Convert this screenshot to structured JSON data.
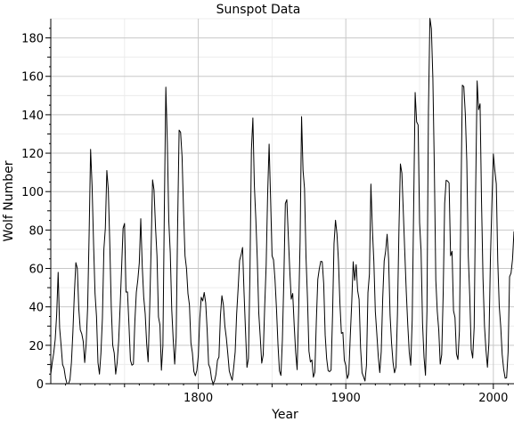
{
  "chart_data": {
    "type": "line",
    "title": "Sunspot Data",
    "xlabel": "Year",
    "ylabel": "Wolf Number",
    "xlim": [
      1700,
      2014
    ],
    "ylim": [
      0,
      190
    ],
    "x_ticks": [
      1800,
      1900,
      2000
    ],
    "x_tick_labels": [
      "1800",
      "1900",
      "2000"
    ],
    "y_ticks": [
      0,
      20,
      40,
      60,
      80,
      100,
      120,
      140,
      160,
      180
    ],
    "y_tick_labels": [
      "0",
      "20",
      "40",
      "60",
      "80",
      "100",
      "120",
      "140",
      "160",
      "180"
    ],
    "grid": true,
    "series": [
      {
        "x": [
          1700,
          1701,
          1702,
          1703,
          1704,
          1705,
          1706,
          1707,
          1708,
          1709,
          1710,
          1711,
          1712,
          1713,
          1714,
          1715,
          1716,
          1717,
          1718,
          1719,
          1720,
          1721,
          1722,
          1723,
          1724,
          1725,
          1726,
          1727,
          1728,
          1729,
          1730,
          1731,
          1732,
          1733,
          1734,
          1735,
          1736,
          1737,
          1738,
          1739,
          1740,
          1741,
          1742,
          1743,
          1744,
          1745,
          1746,
          1747,
          1748,
          1749,
          1750,
          1751,
          1752,
          1753,
          1754,
          1755,
          1756,
          1757,
          1758,
          1759,
          1760,
          1761,
          1762,
          1763,
          1764,
          1765,
          1766,
          1767,
          1768,
          1769,
          1770,
          1771,
          1772,
          1773,
          1774,
          1775,
          1776,
          1777,
          1778,
          1779,
          1780,
          1781,
          1782,
          1783,
          1784,
          1785,
          1786,
          1787,
          1788,
          1789,
          1790,
          1791,
          1792,
          1793,
          1794,
          1795,
          1796,
          1797,
          1798,
          1799,
          1800,
          1801,
          1802,
          1803,
          1804,
          1805,
          1806,
          1807,
          1808,
          1809,
          1810,
          1811,
          1812,
          1813,
          1814,
          1815,
          1816,
          1817,
          1818,
          1819,
          1820,
          1821,
          1822,
          1823,
          1824,
          1825,
          1826,
          1827,
          1828,
          1829,
          1830,
          1831,
          1832,
          1833,
          1834,
          1835,
          1836,
          1837,
          1838,
          1839,
          1840,
          1841,
          1842,
          1843,
          1844,
          1845,
          1846,
          1847,
          1848,
          1849,
          1850,
          1851,
          1852,
          1853,
          1854,
          1855,
          1856,
          1857,
          1858,
          1859,
          1860,
          1861,
          1862,
          1863,
          1864,
          1865,
          1866,
          1867,
          1868,
          1869,
          1870,
          1871,
          1872,
          1873,
          1874,
          1875,
          1876,
          1877,
          1878,
          1879,
          1880,
          1881,
          1882,
          1883,
          1884,
          1885,
          1886,
          1887,
          1888,
          1889,
          1890,
          1891,
          1892,
          1893,
          1894,
          1895,
          1896,
          1897,
          1898,
          1899,
          1900,
          1901,
          1902,
          1903,
          1904,
          1905,
          1906,
          1907,
          1908,
          1909,
          1910,
          1911,
          1912,
          1913,
          1914,
          1915,
          1916,
          1917,
          1918,
          1919,
          1920,
          1921,
          1922,
          1923,
          1924,
          1925,
          1926,
          1927,
          1928,
          1929,
          1930,
          1931,
          1932,
          1933,
          1934,
          1935,
          1936,
          1937,
          1938,
          1939,
          1940,
          1941,
          1942,
          1943,
          1944,
          1945,
          1946,
          1947,
          1948,
          1949,
          1950,
          1951,
          1952,
          1953,
          1954,
          1955,
          1956,
          1957,
          1958,
          1959,
          1960,
          1961,
          1962,
          1963,
          1964,
          1965,
          1966,
          1967,
          1968,
          1969,
          1970,
          1971,
          1972,
          1973,
          1974,
          1975,
          1976,
          1977,
          1978,
          1979,
          1980,
          1981,
          1982,
          1983,
          1984,
          1985,
          1986,
          1987,
          1988,
          1989,
          1990,
          1991,
          1992,
          1993,
          1994,
          1995,
          1996,
          1997,
          1998,
          1999,
          2000,
          2001,
          2002,
          2003,
          2004,
          2005,
          2006,
          2007,
          2008,
          2009,
          2010,
          2011,
          2012,
          2013,
          2014
        ],
        "y": [
          5,
          11,
          16,
          23,
          36,
          58,
          29,
          20,
          10,
          8,
          3,
          0,
          0,
          2,
          11,
          27,
          47,
          63,
          60,
          39,
          28,
          26,
          22,
          11,
          21,
          40,
          78,
          122,
          103,
          73,
          47,
          35,
          11,
          5,
          16,
          34,
          70,
          81,
          111,
          101,
          73,
          40,
          20,
          16,
          5,
          11,
          22,
          40,
          60,
          80.9,
          83.4,
          47.7,
          47.8,
          30.7,
          12.2,
          9.6,
          10.2,
          32.4,
          47.6,
          54,
          62.9,
          85.9,
          61.2,
          45.1,
          36.4,
          20.9,
          11.4,
          37.8,
          69.8,
          106.1,
          100.8,
          81.6,
          66.5,
          34.8,
          30.6,
          7,
          19.8,
          92.5,
          154.4,
          125.9,
          84.8,
          68.1,
          38.5,
          22.8,
          10.2,
          24.1,
          82.9,
          132,
          130.9,
          118.1,
          89.9,
          66.6,
          60,
          46.9,
          41,
          21.3,
          16,
          6.4,
          4.1,
          6.8,
          14.5,
          34,
          45,
          43.1,
          47.5,
          42.2,
          28.1,
          10.1,
          8.1,
          2.5,
          0,
          1.4,
          5,
          12.2,
          13.9,
          35.4,
          45.8,
          41.1,
          30.1,
          23.9,
          15.6,
          6.6,
          4,
          1.8,
          8.5,
          16.6,
          36.3,
          49.6,
          64.2,
          67,
          70.9,
          47.8,
          27.5,
          8.5,
          13.2,
          56.9,
          121.5,
          138.3,
          103.2,
          85.7,
          64.6,
          36.7,
          24.2,
          10.7,
          15,
          40.1,
          61.5,
          98.5,
          124.7,
          96.3,
          66.6,
          64.5,
          54.1,
          39,
          20.6,
          6.7,
          4.3,
          22.7,
          54.8,
          93.8,
          95.8,
          77.2,
          59.1,
          44,
          47,
          30.5,
          16.3,
          7.3,
          37.6,
          74,
          139,
          111.2,
          101.6,
          66.2,
          44.7,
          17,
          11.3,
          12.4,
          3.4,
          6,
          32.3,
          54.3,
          59.7,
          63.7,
          63.5,
          52.2,
          25.4,
          13.1,
          6.8,
          6.3,
          7.1,
          35.6,
          73,
          85.1,
          78,
          64,
          41.8,
          26.2,
          26.7,
          12.1,
          9.5,
          2.7,
          5,
          24.4,
          42,
          63.5,
          53.8,
          62,
          48.5,
          43.9,
          18.6,
          5.7,
          3.6,
          1.4,
          9.6,
          47.4,
          57.1,
          103.9,
          80.6,
          63.6,
          37.6,
          26.1,
          14.2,
          5.8,
          16.7,
          44.3,
          63.9,
          69,
          77.8,
          64.9,
          35.7,
          21.2,
          11.1,
          5.7,
          8.7,
          36.1,
          79.7,
          114.4,
          109.6,
          88.8,
          67.8,
          47.5,
          30.6,
          16.3,
          9.6,
          33.2,
          92.6,
          151.6,
          136.3,
          134.7,
          83.9,
          69.4,
          31.5,
          13.9,
          4.4,
          38,
          141.7,
          190.2,
          184.8,
          159,
          112.3,
          53.9,
          37.6,
          27.9,
          10.2,
          15.1,
          47,
          93.8,
          105.9,
          105.5,
          104.5,
          66.6,
          68.9,
          38,
          34.5,
          15.5,
          12.6,
          27.5,
          92.5,
          155.4,
          154.6,
          140.4,
          115.9,
          66.6,
          45.9,
          17.9,
          13.4,
          29.4,
          100.2,
          157.6,
          142.6,
          145.7,
          94.3,
          54.6,
          29.9,
          17.5,
          8.6,
          21.5,
          64.3,
          93.3,
          119.6,
          111,
          104,
          63.7,
          40.4,
          29.8,
          15.2,
          7.5,
          2.9,
          3.1,
          16.5,
          55.7,
          57.6,
          64.7,
          79.3
        ]
      }
    ]
  }
}
